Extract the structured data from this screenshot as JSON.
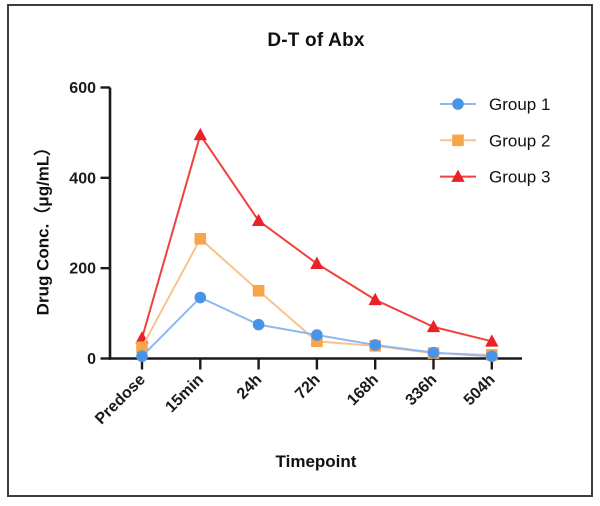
{
  "figure": {
    "background": "#ffffff",
    "border_color": "#3d3d3d"
  },
  "chart_data": {
    "type": "line",
    "title": "D-T of Abx",
    "xlabel": "Timepoint",
    "ylabel": "Drug Conc.（μg/mL）",
    "categories": [
      "Predose",
      "15min",
      "24h",
      "72h",
      "168h",
      "336h",
      "504h"
    ],
    "series": [
      {
        "name": "Group 1",
        "marker": "circle",
        "marker_color": "#4A94E8",
        "line_color": "#8FB8EE",
        "values": [
          5,
          135,
          75,
          52,
          30,
          13,
          5
        ]
      },
      {
        "name": "Group 2",
        "marker": "square",
        "marker_color": "#F7A44A",
        "line_color": "#F9C38A",
        "values": [
          25,
          265,
          150,
          38,
          28,
          12,
          8
        ]
      },
      {
        "name": "Group 3",
        "marker": "triangle",
        "marker_color": "#EB2128",
        "line_color": "#EF423C",
        "values": [
          45,
          495,
          305,
          210,
          130,
          70,
          38
        ]
      }
    ],
    "ylim": [
      0,
      600
    ],
    "yticks": [
      0,
      200,
      400,
      600
    ],
    "legend_position": "top-right",
    "grid": false,
    "axis_color": "#1a1a1a"
  }
}
